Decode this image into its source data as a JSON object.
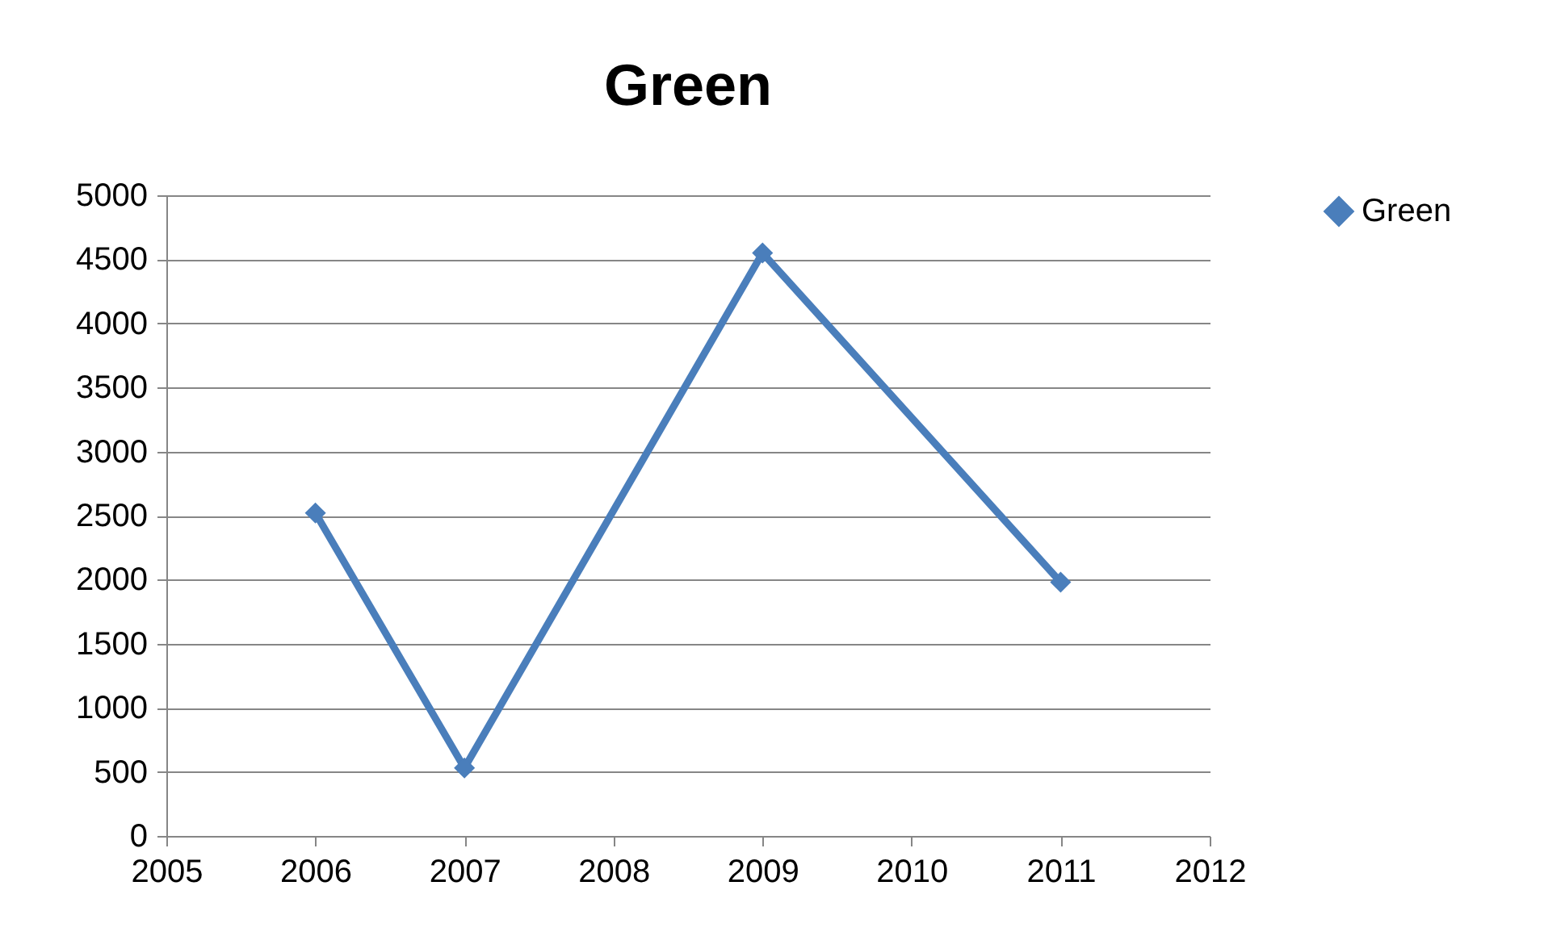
{
  "chart_data": {
    "type": "line",
    "title": "Green",
    "x": [
      2006,
      2007,
      2009,
      2011
    ],
    "series": [
      {
        "name": "Green",
        "color": "#4a7ebb",
        "values": [
          2520,
          530,
          4550,
          1980
        ]
      }
    ],
    "xlim": [
      2005,
      2012
    ],
    "xticks": [
      2005,
      2006,
      2007,
      2008,
      2009,
      2010,
      2011,
      2012
    ],
    "ylim": [
      0,
      5000
    ],
    "yticks": [
      0,
      500,
      1000,
      1500,
      2000,
      2500,
      3000,
      3500,
      4000,
      4500,
      5000
    ],
    "grid": "y",
    "legend": "right",
    "marker": "diamond",
    "line_style": "solid"
  }
}
